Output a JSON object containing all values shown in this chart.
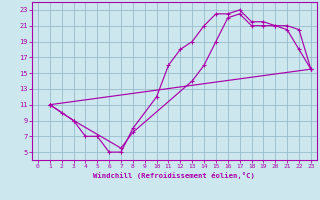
{
  "xlabel": "Windchill (Refroidissement éolien,°C)",
  "bg_color": "#cce8ee",
  "line_color": "#aa00aa",
  "grid_color": "#99bbcc",
  "xlim": [
    -0.5,
    23.5
  ],
  "ylim": [
    4,
    24
  ],
  "xticks": [
    0,
    1,
    2,
    3,
    4,
    5,
    6,
    7,
    8,
    9,
    10,
    11,
    12,
    13,
    14,
    15,
    16,
    17,
    18,
    19,
    20,
    21,
    22,
    23
  ],
  "yticks": [
    5,
    7,
    9,
    11,
    13,
    15,
    17,
    19,
    21,
    23
  ],
  "curve1_x": [
    1,
    2,
    3,
    4,
    5,
    6,
    7,
    8,
    10,
    11,
    12,
    13,
    14,
    15,
    16,
    17,
    18,
    19,
    20,
    21,
    22,
    23
  ],
  "curve1_y": [
    11,
    10,
    9,
    7,
    7,
    5,
    5,
    8,
    12,
    16,
    18,
    19,
    21,
    22.5,
    22.5,
    23,
    21.5,
    21.5,
    21,
    20.5,
    18,
    15.5
  ],
  "curve2_x": [
    1,
    3,
    7,
    8,
    13,
    14,
    15,
    16,
    17,
    18,
    19,
    20,
    21,
    22,
    23
  ],
  "curve2_y": [
    11,
    9,
    5.5,
    7.5,
    14,
    16,
    19,
    22,
    22.5,
    21,
    21,
    21,
    21,
    20.5,
    15.5
  ],
  "curve3_x": [
    1,
    23
  ],
  "curve3_y": [
    11,
    15.5
  ]
}
